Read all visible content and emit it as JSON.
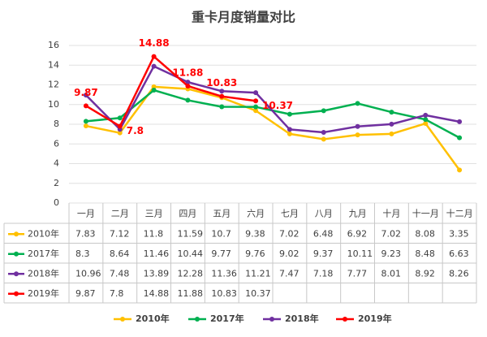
{
  "chart_data": {
    "type": "line",
    "title": "重卡月度销量对比",
    "categories": [
      "一月",
      "二月",
      "三月",
      "四月",
      "五月",
      "六月",
      "七月",
      "八月",
      "九月",
      "十月",
      "十一月",
      "十二月"
    ],
    "series": [
      {
        "name": "2010年",
        "color": "#ffc000",
        "values": [
          7.83,
          7.12,
          11.8,
          11.59,
          10.7,
          9.38,
          7.02,
          6.48,
          6.92,
          7.02,
          8.08,
          3.35
        ]
      },
      {
        "name": "2017年",
        "color": "#00b050",
        "values": [
          8.3,
          8.64,
          11.46,
          10.44,
          9.77,
          9.76,
          9.02,
          9.37,
          10.11,
          9.23,
          8.48,
          6.63
        ]
      },
      {
        "name": "2018年",
        "color": "#7030a0",
        "values": [
          10.96,
          7.48,
          13.89,
          12.28,
          11.36,
          11.21,
          7.47,
          7.18,
          7.77,
          8.01,
          8.92,
          8.26
        ]
      },
      {
        "name": "2019年",
        "color": "#ff0000",
        "values": [
          9.87,
          7.8,
          14.88,
          11.88,
          10.83,
          10.37,
          null,
          null,
          null,
          null,
          null,
          null
        ],
        "data_labels": true
      }
    ],
    "ylim": [
      0,
      16
    ],
    "yticks": [
      0,
      2,
      4,
      6,
      8,
      10,
      12,
      14,
      16
    ],
    "grid": true,
    "legend": "bottom",
    "data_table": true
  }
}
